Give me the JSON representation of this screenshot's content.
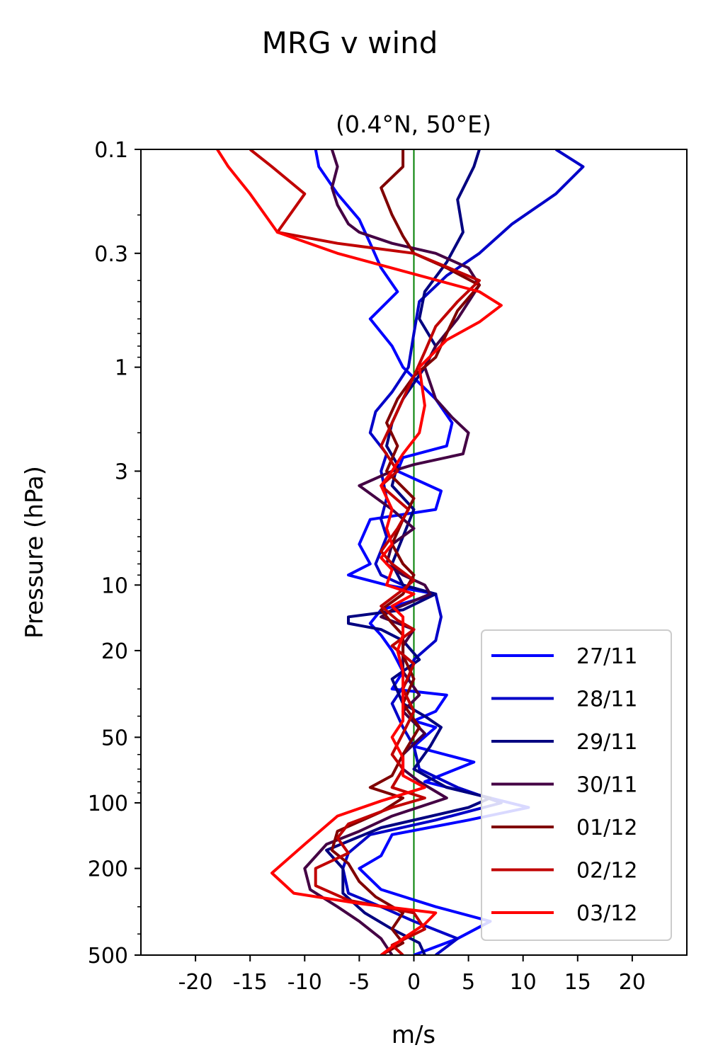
{
  "figure": {
    "suptitle": "MRG v wind"
  },
  "chart_data": {
    "type": "line",
    "title": "(0.4°N, 50°E)",
    "xlabel": "m/s",
    "ylabel": "Pressure (hPa)",
    "xlim": [
      -25,
      25
    ],
    "ylim": [
      500,
      0.1
    ],
    "yscale": "log",
    "xticks": [
      -20,
      -15,
      -10,
      -5,
      0,
      5,
      10,
      15,
      20
    ],
    "xtick_labels": [
      "-20",
      "-15",
      "-10",
      "-5",
      "0",
      "5",
      "10",
      "15",
      "20"
    ],
    "yticks": [
      0.1,
      0.3,
      1,
      3,
      10,
      20,
      50,
      100,
      200,
      500
    ],
    "ytick_labels": [
      "0.1",
      "0.3",
      "1",
      "3",
      "10",
      "20",
      "50",
      "100",
      "200",
      "500"
    ],
    "reference_line": {
      "x": 0,
      "color": "#007f00"
    },
    "legend_position": "lower-right",
    "series": [
      {
        "name": "27/11",
        "color": "#0000ff",
        "points": [
          [
            -9,
            0.1
          ],
          [
            -8.7,
            0.12
          ],
          [
            -7,
            0.16
          ],
          [
            -5,
            0.21
          ],
          [
            -4,
            0.27
          ],
          [
            -3,
            0.35
          ],
          [
            -1.5,
            0.45
          ],
          [
            -4,
            0.6
          ],
          [
            -2,
            0.8
          ],
          [
            -1,
            1.0
          ],
          [
            2,
            1.4
          ],
          [
            3.5,
            1.8
          ],
          [
            3,
            2.3
          ],
          [
            -1,
            2.6
          ],
          [
            -1.5,
            3.0
          ],
          [
            2.5,
            3.7
          ],
          [
            2,
            4.5
          ],
          [
            -4,
            5
          ],
          [
            -5,
            6.5
          ],
          [
            -4,
            8
          ],
          [
            -6,
            9
          ],
          [
            -2.5,
            10
          ],
          [
            2,
            11
          ],
          [
            -3,
            13
          ],
          [
            -4,
            15
          ],
          [
            -3,
            17
          ],
          [
            -2,
            20
          ],
          [
            -1,
            25
          ],
          [
            -2,
            30
          ],
          [
            3,
            32
          ],
          [
            2,
            38
          ],
          [
            0,
            42
          ],
          [
            2,
            45
          ],
          [
            0,
            55
          ],
          [
            5.5,
            65
          ],
          [
            1,
            80
          ],
          [
            7,
            95
          ],
          [
            10.5,
            105
          ],
          [
            5,
            120
          ],
          [
            -2,
            140
          ],
          [
            -3,
            175
          ],
          [
            -5,
            200
          ],
          [
            -3,
            250
          ],
          [
            2,
            300
          ],
          [
            7,
            350
          ],
          [
            4,
            420
          ],
          [
            0,
            500
          ]
        ]
      },
      {
        "name": "28/11",
        "color": "#0000c8",
        "points": [
          [
            13,
            0.1
          ],
          [
            15.5,
            0.12
          ],
          [
            13,
            0.16
          ],
          [
            9,
            0.22
          ],
          [
            6,
            0.3
          ],
          [
            3,
            0.38
          ],
          [
            0.5,
            0.5
          ],
          [
            0,
            0.7
          ],
          [
            -0.5,
            1.0
          ],
          [
            -2,
            1.3
          ],
          [
            -3.5,
            1.6
          ],
          [
            -4,
            2
          ],
          [
            -2.5,
            2.5
          ],
          [
            -3,
            3
          ],
          [
            -2.5,
            4
          ],
          [
            -3,
            5
          ],
          [
            -2.5,
            6
          ],
          [
            -3.5,
            8
          ],
          [
            -3,
            9
          ],
          [
            -1,
            10
          ],
          [
            2,
            11
          ],
          [
            2.5,
            14
          ],
          [
            2,
            18
          ],
          [
            0,
            22
          ],
          [
            -0.5,
            27
          ],
          [
            -2,
            35
          ],
          [
            -1,
            45
          ],
          [
            0,
            55
          ],
          [
            0.5,
            70
          ],
          [
            4,
            85
          ],
          [
            8,
            100
          ],
          [
            2,
            120
          ],
          [
            -4,
            140
          ],
          [
            -6,
            170
          ],
          [
            -6.5,
            200
          ],
          [
            -6,
            260
          ],
          [
            -3,
            300
          ],
          [
            0,
            350
          ],
          [
            4,
            420
          ],
          [
            2,
            500
          ]
        ]
      },
      {
        "name": "29/11",
        "color": "#000080",
        "points": [
          [
            6,
            0.1
          ],
          [
            5.5,
            0.12
          ],
          [
            4,
            0.17
          ],
          [
            4.5,
            0.24
          ],
          [
            3,
            0.33
          ],
          [
            1,
            0.45
          ],
          [
            0.5,
            0.6
          ],
          [
            2,
            0.8
          ],
          [
            1,
            1.0
          ],
          [
            -1,
            1.4
          ],
          [
            -2,
            1.8
          ],
          [
            -2.5,
            2.3
          ],
          [
            -1.5,
            2.8
          ],
          [
            -2,
            3.5
          ],
          [
            0,
            4.5
          ],
          [
            -1,
            6
          ],
          [
            -2,
            8
          ],
          [
            -1,
            10
          ],
          [
            2,
            11
          ],
          [
            -1,
            13
          ],
          [
            -6,
            14
          ],
          [
            -6,
            15
          ],
          [
            -3,
            16
          ],
          [
            -1,
            18
          ],
          [
            0.5,
            22
          ],
          [
            -2,
            27
          ],
          [
            -1,
            35
          ],
          [
            1,
            40
          ],
          [
            2.5,
            45
          ],
          [
            1.5,
            55
          ],
          [
            0,
            70
          ],
          [
            3,
            85
          ],
          [
            7,
            95
          ],
          [
            5,
            105
          ],
          [
            -3,
            130
          ],
          [
            -8,
            165
          ],
          [
            -6.5,
            200
          ],
          [
            -6.5,
            260
          ],
          [
            -4.5,
            320
          ],
          [
            -2,
            380
          ],
          [
            0.5,
            440
          ],
          [
            1,
            500
          ]
        ]
      },
      {
        "name": "30/11",
        "color": "#440044",
        "points": [
          [
            -7.5,
            0.1
          ],
          [
            -7,
            0.12
          ],
          [
            -7.5,
            0.15
          ],
          [
            -7,
            0.18
          ],
          [
            -6,
            0.22
          ],
          [
            -5,
            0.24
          ],
          [
            -2,
            0.27
          ],
          [
            2,
            0.3
          ],
          [
            5,
            0.35
          ],
          [
            6,
            0.42
          ],
          [
            4,
            0.6
          ],
          [
            2,
            0.8
          ],
          [
            1,
            1.0
          ],
          [
            2,
            1.4
          ],
          [
            3.5,
            1.7
          ],
          [
            5,
            2.0
          ],
          [
            4.5,
            2.5
          ],
          [
            0,
            2.8
          ],
          [
            -2,
            3
          ],
          [
            -5,
            3.5
          ],
          [
            -2,
            4.5
          ],
          [
            0,
            5.5
          ],
          [
            -2,
            6.5
          ],
          [
            -2.5,
            8
          ],
          [
            -1,
            9
          ],
          [
            1,
            10
          ],
          [
            1.5,
            11
          ],
          [
            -2,
            13
          ],
          [
            -3,
            14
          ],
          [
            0,
            16
          ],
          [
            -1,
            19
          ],
          [
            -1,
            25
          ],
          [
            0.5,
            32
          ],
          [
            -1,
            38
          ],
          [
            1,
            48
          ],
          [
            -1,
            60
          ],
          [
            -1,
            70
          ],
          [
            0.5,
            80
          ],
          [
            3,
            95
          ],
          [
            -2,
            115
          ],
          [
            -5,
            135
          ],
          [
            -8,
            155
          ],
          [
            -10,
            200
          ],
          [
            -9.5,
            250
          ],
          [
            -7,
            300
          ],
          [
            -5,
            350
          ],
          [
            -3,
            420
          ],
          [
            -2,
            500
          ]
        ]
      },
      {
        "name": "01/12",
        "color": "#800000",
        "points": [
          [
            -1,
            0.1
          ],
          [
            -1,
            0.12
          ],
          [
            -3,
            0.15
          ],
          [
            -2,
            0.2
          ],
          [
            -1,
            0.25
          ],
          [
            0,
            0.3
          ],
          [
            3,
            0.35
          ],
          [
            6,
            0.42
          ],
          [
            4,
            0.55
          ],
          [
            3,
            0.7
          ],
          [
            2,
            0.9
          ],
          [
            0,
            1.1
          ],
          [
            -1.5,
            1.4
          ],
          [
            -2.5,
            1.8
          ],
          [
            -1.5,
            2.3
          ],
          [
            -2.5,
            3
          ],
          [
            0,
            4
          ],
          [
            -1,
            5
          ],
          [
            -2,
            6.5
          ],
          [
            -1,
            8
          ],
          [
            0,
            9
          ],
          [
            -1,
            11
          ],
          [
            -3,
            13
          ],
          [
            -2,
            15
          ],
          [
            -1,
            17
          ],
          [
            -1,
            21
          ],
          [
            0,
            27
          ],
          [
            -1,
            35
          ],
          [
            0.5,
            45
          ],
          [
            -1,
            60
          ],
          [
            -2,
            75
          ],
          [
            -4,
            85
          ],
          [
            -1,
            95
          ],
          [
            -3,
            110
          ],
          [
            -7,
            135
          ],
          [
            -7.5,
            165
          ],
          [
            -6,
            190
          ],
          [
            -5,
            230
          ],
          [
            -3.5,
            270
          ],
          [
            -1,
            320
          ],
          [
            -2,
            380
          ],
          [
            -1,
            440
          ],
          [
            -3,
            500
          ]
        ]
      },
      {
        "name": "02/12",
        "color": "#c00000",
        "points": [
          [
            -15,
            0.1
          ],
          [
            -13,
            0.12
          ],
          [
            -10,
            0.16
          ],
          [
            -12.5,
            0.24
          ],
          [
            -7,
            0.27
          ],
          [
            0,
            0.3
          ],
          [
            6,
            0.4
          ],
          [
            4,
            0.5
          ],
          [
            2,
            0.65
          ],
          [
            1,
            0.85
          ],
          [
            0,
            1.1
          ],
          [
            -1,
            1.4
          ],
          [
            -2,
            1.8
          ],
          [
            -3,
            2.3
          ],
          [
            -1.5,
            3.0
          ],
          [
            -3,
            3.5
          ],
          [
            -0.5,
            4.5
          ],
          [
            -1.5,
            5.5
          ],
          [
            -3,
            7
          ],
          [
            -2,
            8
          ],
          [
            0,
            9.5
          ],
          [
            -1,
            10.5
          ],
          [
            -3,
            12.5
          ],
          [
            -1.5,
            14.5
          ],
          [
            0,
            16
          ],
          [
            -2,
            19
          ],
          [
            0,
            23
          ],
          [
            -1,
            30
          ],
          [
            0,
            38
          ],
          [
            -1,
            48
          ],
          [
            -2,
            60
          ],
          [
            -1,
            70
          ],
          [
            -2,
            85
          ],
          [
            1,
            95
          ],
          [
            -2,
            105
          ],
          [
            -6,
            125
          ],
          [
            -7,
            145
          ],
          [
            -6,
            170
          ],
          [
            -9,
            200
          ],
          [
            -9,
            240
          ],
          [
            -6,
            280
          ],
          [
            0,
            320
          ],
          [
            1,
            380
          ],
          [
            -2,
            450
          ],
          [
            -1,
            500
          ]
        ]
      },
      {
        "name": "03/12",
        "color": "#ff0000",
        "points": [
          [
            -18,
            0.1
          ],
          [
            -17,
            0.12
          ],
          [
            -15,
            0.16
          ],
          [
            -12.5,
            0.24
          ],
          [
            -7,
            0.3
          ],
          [
            6,
            0.45
          ],
          [
            8,
            0.52
          ],
          [
            6,
            0.62
          ],
          [
            3,
            0.75
          ],
          [
            0.5,
            1.0
          ],
          [
            1,
            1.5
          ],
          [
            0.5,
            2.0
          ],
          [
            -1,
            2.5
          ],
          [
            -2,
            3
          ],
          [
            -3,
            3.5
          ],
          [
            -2,
            4.5
          ],
          [
            -2.5,
            5.5
          ],
          [
            -2,
            6.5
          ],
          [
            -3,
            7.5
          ],
          [
            -2,
            8.5
          ],
          [
            -2.5,
            10
          ],
          [
            0,
            11
          ],
          [
            -2,
            12.5
          ],
          [
            -1,
            14
          ],
          [
            -1,
            17
          ],
          [
            -1.5,
            20
          ],
          [
            -1,
            25
          ],
          [
            -1,
            33
          ],
          [
            -1,
            42
          ],
          [
            -2,
            50
          ],
          [
            -1,
            62
          ],
          [
            -1,
            75
          ],
          [
            1,
            85
          ],
          [
            -3,
            98
          ],
          [
            -7,
            115
          ],
          [
            -10,
            155
          ],
          [
            -13,
            210
          ],
          [
            -11,
            260
          ],
          [
            -5,
            290
          ],
          [
            2,
            320
          ],
          [
            1,
            360
          ],
          [
            -1,
            420
          ],
          [
            -3,
            500
          ]
        ]
      }
    ]
  }
}
